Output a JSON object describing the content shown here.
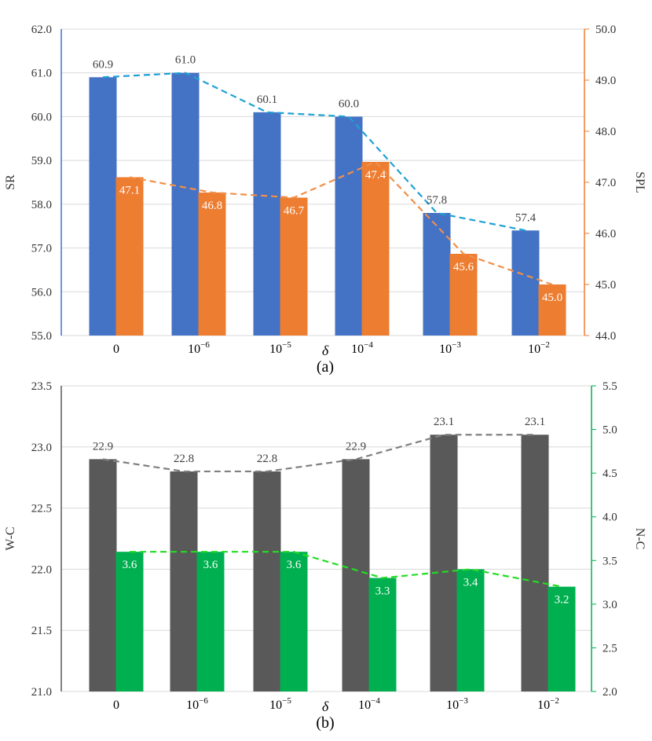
{
  "chart_data": [
    {
      "type": "bar",
      "categories": [
        "0",
        "10",
        "10",
        "10",
        "10",
        "10"
      ],
      "category_exponents": [
        "",
        "−6",
        "−5",
        "−4",
        "−3",
        "−2"
      ],
      "xlabel": "δ",
      "caption": "(a)",
      "left_axis": {
        "label": "SR",
        "ylim": [
          55.0,
          62.0
        ],
        "ticks": [
          "55.0",
          "56.0",
          "57.0",
          "58.0",
          "59.0",
          "60.0",
          "61.0",
          "62.0"
        ],
        "color": "#4472c4"
      },
      "right_axis": {
        "label": "SPL",
        "ylim": [
          44.0,
          50.0
        ],
        "ticks": [
          "44.0",
          "45.0",
          "46.0",
          "47.0",
          "48.0",
          "49.0",
          "50.0"
        ],
        "color": "#ed7d31"
      },
      "series": [
        {
          "name": "SR",
          "axis": "left",
          "color": "#4472c4",
          "trend_color": "#1fa1d4",
          "values": [
            60.9,
            61.0,
            60.1,
            60.0,
            57.8,
            57.4
          ],
          "labels": [
            "60.9",
            "61.0",
            "60.1",
            "60.0",
            "57.8",
            "57.4"
          ]
        },
        {
          "name": "SPL",
          "axis": "right",
          "color": "#ed7d31",
          "trend_color": "#f0904a",
          "values": [
            47.1,
            46.8,
            46.7,
            47.4,
            45.6,
            45.0
          ],
          "labels": [
            "47.1",
            "46.8",
            "46.7",
            "47.4",
            "45.6",
            "45.0"
          ]
        }
      ]
    },
    {
      "type": "bar",
      "categories": [
        "0",
        "10",
        "10",
        "10",
        "10",
        "10"
      ],
      "category_exponents": [
        "",
        "−6",
        "−5",
        "−4",
        "−3",
        "−2"
      ],
      "xlabel": "δ",
      "caption": "(b)",
      "left_axis": {
        "label": "W-C",
        "ylim": [
          21.0,
          23.5
        ],
        "ticks": [
          "21.0",
          "21.5",
          "22.0",
          "22.5",
          "23.0",
          "23.5"
        ],
        "color": "#595959"
      },
      "right_axis": {
        "label": "N-C",
        "ylim": [
          2.0,
          5.5
        ],
        "ticks": [
          "2.0",
          "2.5",
          "3.0",
          "3.5",
          "4.0",
          "4.5",
          "5.0",
          "5.5"
        ],
        "color": "#00b050"
      },
      "series": [
        {
          "name": "W-C",
          "axis": "left",
          "color": "#595959",
          "trend_color": "#808080",
          "values": [
            22.9,
            22.8,
            22.8,
            22.9,
            23.1,
            23.1
          ],
          "labels": [
            "22.9",
            "22.8",
            "22.8",
            "22.9",
            "23.1",
            "23.1"
          ]
        },
        {
          "name": "N-C",
          "axis": "right",
          "color": "#00b050",
          "trend_color": "#22dd22",
          "values": [
            3.6,
            3.6,
            3.6,
            3.3,
            3.4,
            3.2
          ],
          "labels": [
            "3.6",
            "3.6",
            "3.6",
            "3.3",
            "3.4",
            "3.2"
          ]
        }
      ]
    }
  ]
}
